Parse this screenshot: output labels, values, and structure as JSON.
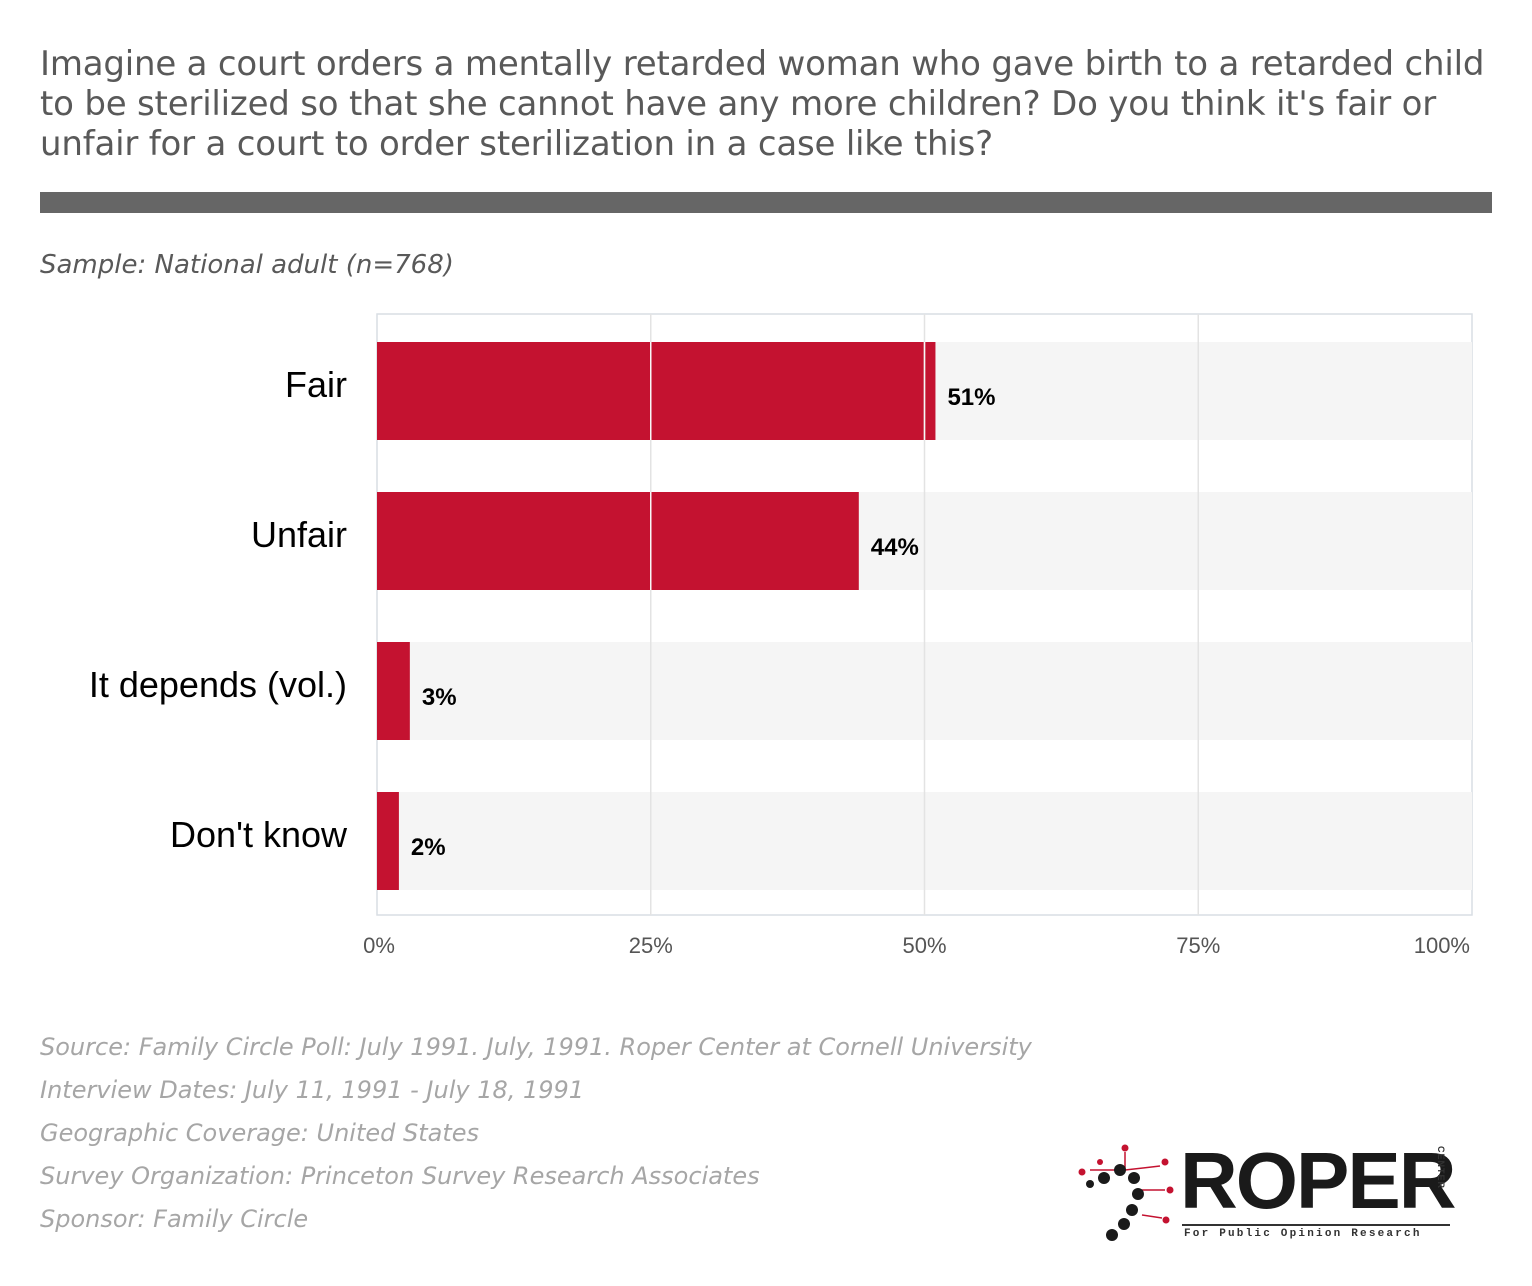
{
  "question": "Imagine a court orders a mentally retarded woman who gave birth to a retarded child to be sterilized so that she cannot have any more children? Do you think it's fair or unfair for a court to order sterilization in a case like this?",
  "sample": {
    "label": "Sample:",
    "value": "National adult (n=768)"
  },
  "chart_data": {
    "type": "bar",
    "orientation": "horizontal",
    "categories": [
      "Fair",
      "Unfair",
      "It depends (vol.)",
      "Don't know"
    ],
    "values": [
      51,
      44,
      3,
      2
    ],
    "value_labels": [
      "51%",
      "44%",
      "3%",
      "2%"
    ],
    "xlim": [
      0,
      100
    ],
    "x_ticks": [
      0,
      25,
      50,
      75,
      100
    ],
    "x_tick_labels": [
      "0%",
      "25%",
      "50%",
      "75%",
      "100%"
    ],
    "grid": true,
    "bar_color": "#c41230",
    "track_color": "#f5f5f5"
  },
  "footer": {
    "source": {
      "label": "Source:",
      "value": "Family Circle Poll: July 1991. July, 1991. Roper Center at Cornell University"
    },
    "dates": {
      "label": "Interview Dates:",
      "value": "July 11, 1991 - July 18, 1991"
    },
    "coverage": {
      "label": "Geographic Coverage:",
      "value": "United States"
    },
    "organization": {
      "label": "Survey Organization:",
      "value": "Princeton Survey Research Associates"
    },
    "sponsor": {
      "label": "Sponsor:",
      "value": "Family Circle"
    }
  },
  "logo": {
    "word": "ROPER",
    "center": "CENTER",
    "tagline": "For Public Opinion Research"
  }
}
